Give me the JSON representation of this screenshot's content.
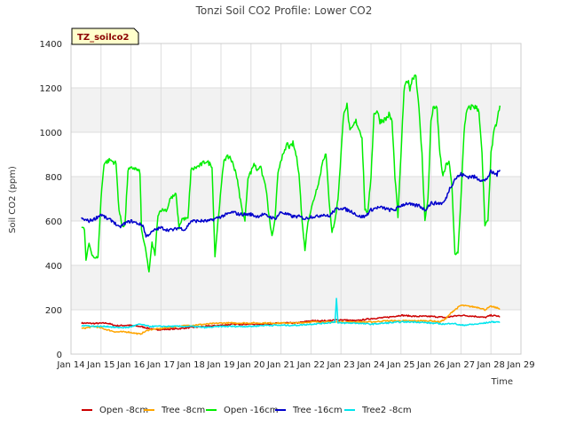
{
  "chart_data": {
    "type": "line",
    "title": "Tonzi Soil CO2 Profile: Lower CO2",
    "site_label": "TZ_soilco2",
    "xlabel": "Time",
    "ylabel": "Soil CO2 (ppm)",
    "xlim": [
      14,
      29
    ],
    "ylim": [
      0,
      1400
    ],
    "y_ticks": [
      0,
      200,
      400,
      600,
      800,
      1000,
      1200,
      1400
    ],
    "x_ticks": [
      {
        "value": 14,
        "label": "Jan 14"
      },
      {
        "value": 15,
        "label": "Jan 15"
      },
      {
        "value": 16,
        "label": "Jan 16"
      },
      {
        "value": 17,
        "label": "Jan 17"
      },
      {
        "value": 18,
        "label": "Jan 18"
      },
      {
        "value": 19,
        "label": "Jan 19"
      },
      {
        "value": 20,
        "label": "Jan 20"
      },
      {
        "value": 21,
        "label": "Jan 21"
      },
      {
        "value": 22,
        "label": "Jan 22"
      },
      {
        "value": 23,
        "label": "Jan 23"
      },
      {
        "value": 24,
        "label": "Jan 24"
      },
      {
        "value": 25,
        "label": "Jan 25"
      },
      {
        "value": 26,
        "label": "Jan 26"
      },
      {
        "value": 27,
        "label": "Jan 27"
      },
      {
        "value": 28,
        "label": "Jan 28"
      },
      {
        "value": 29,
        "label": "Jan 29"
      }
    ],
    "grid": true,
    "legend_position": "bottom",
    "series": [
      {
        "name": "Open -8cm",
        "color": "#cc0000",
        "points": [
          [
            14.35,
            140
          ],
          [
            14.8,
            138
          ],
          [
            15.2,
            140
          ],
          [
            15.5,
            128
          ],
          [
            15.9,
            130
          ],
          [
            16.3,
            125
          ],
          [
            16.8,
            110
          ],
          [
            17.2,
            112
          ],
          [
            17.6,
            115
          ],
          [
            18.0,
            120
          ],
          [
            18.5,
            125
          ],
          [
            19.0,
            130
          ],
          [
            19.5,
            135
          ],
          [
            20.0,
            135
          ],
          [
            20.5,
            135
          ],
          [
            21.0,
            140
          ],
          [
            21.5,
            140
          ],
          [
            22.0,
            150
          ],
          [
            22.5,
            150
          ],
          [
            23.0,
            155
          ],
          [
            23.5,
            150
          ],
          [
            24.0,
            160
          ],
          [
            24.5,
            165
          ],
          [
            25.0,
            175
          ],
          [
            25.5,
            170
          ],
          [
            26.0,
            170
          ],
          [
            26.5,
            165
          ],
          [
            26.7,
            170
          ],
          [
            27.0,
            175
          ],
          [
            27.5,
            170
          ],
          [
            27.8,
            165
          ],
          [
            28.0,
            175
          ],
          [
            28.3,
            170
          ]
        ]
      },
      {
        "name": "Tree -8cm",
        "color": "#ffa500",
        "points": [
          [
            14.35,
            115
          ],
          [
            14.8,
            125
          ],
          [
            15.2,
            110
          ],
          [
            15.5,
            100
          ],
          [
            15.9,
            100
          ],
          [
            16.3,
            90
          ],
          [
            16.6,
            110
          ],
          [
            17.0,
            115
          ],
          [
            17.5,
            125
          ],
          [
            18.0,
            130
          ],
          [
            18.5,
            135
          ],
          [
            19.0,
            140
          ],
          [
            19.5,
            140
          ],
          [
            20.0,
            140
          ],
          [
            20.5,
            140
          ],
          [
            21.0,
            140
          ],
          [
            21.5,
            140
          ],
          [
            22.0,
            145
          ],
          [
            22.5,
            145
          ],
          [
            23.0,
            145
          ],
          [
            23.5,
            145
          ],
          [
            24.0,
            145
          ],
          [
            24.5,
            150
          ],
          [
            25.0,
            150
          ],
          [
            25.5,
            150
          ],
          [
            26.0,
            150
          ],
          [
            26.3,
            145
          ],
          [
            26.5,
            160
          ],
          [
            26.7,
            190
          ],
          [
            27.0,
            220
          ],
          [
            27.3,
            215
          ],
          [
            27.6,
            210
          ],
          [
            27.8,
            200
          ],
          [
            28.0,
            215
          ],
          [
            28.3,
            205
          ]
        ]
      },
      {
        "name": "Open -16cm",
        "color": "#00ee00",
        "points": [
          [
            14.35,
            575
          ],
          [
            14.45,
            560
          ],
          [
            14.5,
            420
          ],
          [
            14.6,
            500
          ],
          [
            14.7,
            450
          ],
          [
            14.8,
            430
          ],
          [
            14.9,
            440
          ],
          [
            15.0,
            700
          ],
          [
            15.1,
            860
          ],
          [
            15.3,
            875
          ],
          [
            15.5,
            860
          ],
          [
            15.6,
            650
          ],
          [
            15.7,
            580
          ],
          [
            15.8,
            580
          ],
          [
            15.9,
            830
          ],
          [
            16.1,
            840
          ],
          [
            16.3,
            820
          ],
          [
            16.35,
            560
          ],
          [
            16.5,
            460
          ],
          [
            16.6,
            370
          ],
          [
            16.7,
            500
          ],
          [
            16.8,
            450
          ],
          [
            16.9,
            630
          ],
          [
            17.0,
            650
          ],
          [
            17.2,
            650
          ],
          [
            17.3,
            700
          ],
          [
            17.5,
            720
          ],
          [
            17.6,
            570
          ],
          [
            17.7,
            610
          ],
          [
            17.9,
            610
          ],
          [
            18.0,
            830
          ],
          [
            18.3,
            850
          ],
          [
            18.5,
            870
          ],
          [
            18.7,
            850
          ],
          [
            18.8,
            440
          ],
          [
            18.9,
            600
          ],
          [
            19.1,
            880
          ],
          [
            19.3,
            890
          ],
          [
            19.5,
            820
          ],
          [
            19.7,
            650
          ],
          [
            19.8,
            600
          ],
          [
            19.9,
            800
          ],
          [
            20.0,
            820
          ],
          [
            20.1,
            860
          ],
          [
            20.2,
            830
          ],
          [
            20.3,
            850
          ],
          [
            20.5,
            750
          ],
          [
            20.6,
            620
          ],
          [
            20.7,
            530
          ],
          [
            20.8,
            600
          ],
          [
            20.9,
            820
          ],
          [
            21.0,
            880
          ],
          [
            21.1,
            900
          ],
          [
            21.2,
            950
          ],
          [
            21.3,
            930
          ],
          [
            21.4,
            950
          ],
          [
            21.5,
            900
          ],
          [
            21.6,
            820
          ],
          [
            21.7,
            600
          ],
          [
            21.8,
            470
          ],
          [
            21.9,
            600
          ],
          [
            22.0,
            650
          ],
          [
            22.1,
            700
          ],
          [
            22.2,
            750
          ],
          [
            22.3,
            800
          ],
          [
            22.4,
            880
          ],
          [
            22.5,
            900
          ],
          [
            22.6,
            700
          ],
          [
            22.7,
            550
          ],
          [
            22.8,
            600
          ],
          [
            22.9,
            700
          ],
          [
            23.0,
            900
          ],
          [
            23.1,
            1100
          ],
          [
            23.2,
            1120
          ],
          [
            23.3,
            1000
          ],
          [
            23.5,
            1050
          ],
          [
            23.7,
            980
          ],
          [
            23.8,
            650
          ],
          [
            23.9,
            640
          ],
          [
            24.0,
            800
          ],
          [
            24.1,
            1080
          ],
          [
            24.2,
            1100
          ],
          [
            24.3,
            1050
          ],
          [
            24.5,
            1060
          ],
          [
            24.6,
            1080
          ],
          [
            24.7,
            1050
          ],
          [
            24.8,
            800
          ],
          [
            24.9,
            620
          ],
          [
            25.0,
            900
          ],
          [
            25.1,
            1180
          ],
          [
            25.2,
            1240
          ],
          [
            25.3,
            1200
          ],
          [
            25.4,
            1250
          ],
          [
            25.5,
            1260
          ],
          [
            25.6,
            1100
          ],
          [
            25.7,
            900
          ],
          [
            25.8,
            600
          ],
          [
            25.9,
            700
          ],
          [
            26.0,
            1050
          ],
          [
            26.1,
            1120
          ],
          [
            26.2,
            1100
          ],
          [
            26.3,
            900
          ],
          [
            26.4,
            800
          ],
          [
            26.5,
            850
          ],
          [
            26.6,
            870
          ],
          [
            26.7,
            750
          ],
          [
            26.8,
            450
          ],
          [
            26.9,
            460
          ],
          [
            27.0,
            700
          ],
          [
            27.1,
            1000
          ],
          [
            27.2,
            1100
          ],
          [
            27.4,
            1120
          ],
          [
            27.6,
            1100
          ],
          [
            27.7,
            900
          ],
          [
            27.8,
            580
          ],
          [
            27.9,
            600
          ],
          [
            28.0,
            900
          ],
          [
            28.1,
            1000
          ],
          [
            28.2,
            1050
          ],
          [
            28.3,
            1120
          ]
        ]
      },
      {
        "name": "Tree -16cm",
        "color": "#0000cc",
        "points": [
          [
            14.35,
            610
          ],
          [
            14.6,
            600
          ],
          [
            14.8,
            610
          ],
          [
            15.0,
            630
          ],
          [
            15.2,
            610
          ],
          [
            15.4,
            600
          ],
          [
            15.6,
            570
          ],
          [
            15.8,
            590
          ],
          [
            16.0,
            600
          ],
          [
            16.2,
            590
          ],
          [
            16.4,
            580
          ],
          [
            16.5,
            530
          ],
          [
            16.6,
            540
          ],
          [
            16.8,
            560
          ],
          [
            17.0,
            570
          ],
          [
            17.2,
            560
          ],
          [
            17.4,
            560
          ],
          [
            17.6,
            570
          ],
          [
            17.8,
            560
          ],
          [
            18.0,
            600
          ],
          [
            18.2,
            600
          ],
          [
            18.4,
            600
          ],
          [
            18.6,
            600
          ],
          [
            18.8,
            610
          ],
          [
            19.0,
            620
          ],
          [
            19.2,
            630
          ],
          [
            19.4,
            640
          ],
          [
            19.6,
            630
          ],
          [
            19.8,
            630
          ],
          [
            20.0,
            630
          ],
          [
            20.2,
            620
          ],
          [
            20.4,
            630
          ],
          [
            20.6,
            620
          ],
          [
            20.8,
            610
          ],
          [
            21.0,
            640
          ],
          [
            21.2,
            630
          ],
          [
            21.4,
            620
          ],
          [
            21.6,
            620
          ],
          [
            21.8,
            610
          ],
          [
            22.0,
            620
          ],
          [
            22.2,
            620
          ],
          [
            22.4,
            630
          ],
          [
            22.6,
            620
          ],
          [
            22.8,
            650
          ],
          [
            23.0,
            660
          ],
          [
            23.2,
            650
          ],
          [
            23.4,
            640
          ],
          [
            23.6,
            620
          ],
          [
            23.8,
            620
          ],
          [
            24.0,
            650
          ],
          [
            24.2,
            660
          ],
          [
            24.4,
            660
          ],
          [
            24.6,
            650
          ],
          [
            24.8,
            650
          ],
          [
            25.0,
            670
          ],
          [
            25.2,
            680
          ],
          [
            25.4,
            670
          ],
          [
            25.6,
            670
          ],
          [
            25.8,
            650
          ],
          [
            26.0,
            680
          ],
          [
            26.2,
            680
          ],
          [
            26.4,
            680
          ],
          [
            26.5,
            700
          ],
          [
            26.6,
            740
          ],
          [
            26.8,
            790
          ],
          [
            27.0,
            810
          ],
          [
            27.2,
            800
          ],
          [
            27.4,
            800
          ],
          [
            27.6,
            790
          ],
          [
            27.8,
            780
          ],
          [
            28.0,
            820
          ],
          [
            28.2,
            810
          ],
          [
            28.3,
            830
          ]
        ]
      },
      {
        "name": "Tree2 -8cm",
        "color": "#00e5ee",
        "points": [
          [
            14.35,
            130
          ],
          [
            14.8,
            125
          ],
          [
            15.2,
            125
          ],
          [
            15.5,
            120
          ],
          [
            15.9,
            120
          ],
          [
            16.3,
            135
          ],
          [
            16.6,
            125
          ],
          [
            17.0,
            125
          ],
          [
            17.5,
            125
          ],
          [
            18.0,
            125
          ],
          [
            18.5,
            120
          ],
          [
            19.0,
            125
          ],
          [
            19.5,
            125
          ],
          [
            20.0,
            125
          ],
          [
            20.5,
            130
          ],
          [
            21.0,
            130
          ],
          [
            21.5,
            130
          ],
          [
            22.0,
            135
          ],
          [
            22.5,
            140
          ],
          [
            22.8,
            145
          ],
          [
            22.85,
            250
          ],
          [
            22.9,
            140
          ],
          [
            23.2,
            140
          ],
          [
            23.5,
            140
          ],
          [
            24.0,
            135
          ],
          [
            24.5,
            140
          ],
          [
            25.0,
            145
          ],
          [
            25.5,
            145
          ],
          [
            26.0,
            140
          ],
          [
            26.5,
            135
          ],
          [
            26.7,
            140
          ],
          [
            27.0,
            130
          ],
          [
            27.5,
            135
          ],
          [
            27.8,
            140
          ],
          [
            28.0,
            145
          ],
          [
            28.3,
            145
          ]
        ]
      }
    ]
  }
}
